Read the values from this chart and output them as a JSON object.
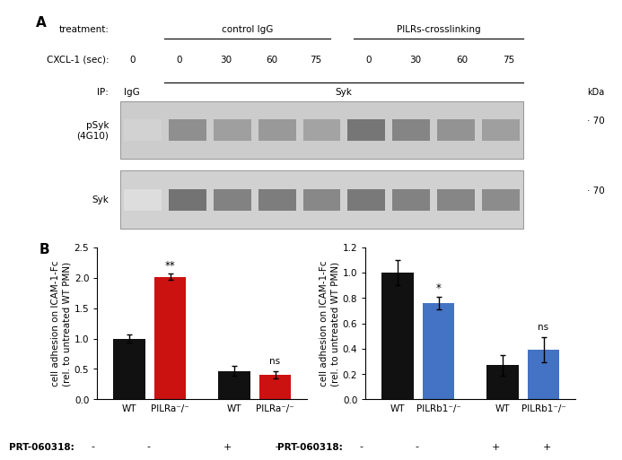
{
  "panel_A": {
    "treatment_label": "treatment:",
    "control_label": "control IgG",
    "pilrs_label": "PILRs-crosslinking",
    "cxcl1_label": "CXCL-1 (sec):",
    "cxcl1_values": [
      "0",
      "0",
      "30",
      "60",
      "75",
      "0",
      "30",
      "60",
      "75"
    ],
    "ip_label": "IP:",
    "ip_igg": "IgG",
    "ip_syk": "Syk",
    "kda_label": "kDa",
    "kda_value": "70",
    "psyk_label": "pSyk\n(4G10)",
    "syk_label": "Syk",
    "blot1_bg": "#c8c8c8",
    "blot2_bg": "#d0d0d0",
    "band_color_dark": "#555555",
    "band_color_mid": "#777777",
    "band_color_light": "#aaaaaa",
    "band_color_veryfaint": "#bbbbbb"
  },
  "panel_B_left": {
    "values": [
      1.0,
      2.01,
      0.47,
      0.4
    ],
    "errors": [
      0.07,
      0.05,
      0.08,
      0.06
    ],
    "colors": [
      "#111111",
      "#cc1111",
      "#111111",
      "#cc1111"
    ],
    "ylabel_line1": "cell adhesion on ICAM-1-Fc",
    "ylabel_line2": "(rel. to untreated WT PMN)",
    "ylim": [
      0,
      2.5
    ],
    "yticks": [
      0,
      0.5,
      1.0,
      1.5,
      2.0,
      2.5
    ],
    "significance": [
      "",
      "**",
      "",
      "ns"
    ],
    "prt_label": "PRT-060318:",
    "prt_values": [
      "-",
      "-",
      "+",
      "+"
    ],
    "group_labels": [
      "WT",
      "PILRa⁻/⁻",
      "WT",
      "PILRa⁻/⁻"
    ]
  },
  "panel_B_right": {
    "values": [
      1.0,
      0.76,
      0.27,
      0.39
    ],
    "errors": [
      0.1,
      0.05,
      0.08,
      0.1
    ],
    "colors": [
      "#111111",
      "#4472c4",
      "#111111",
      "#4472c4"
    ],
    "ylabel_line1": "cell adhesion on ICAM-1-Fc",
    "ylabel_line2": "(rel. to untreated WT PMN)",
    "ylim": [
      0,
      1.2
    ],
    "yticks": [
      0,
      0.2,
      0.4,
      0.6,
      0.8,
      1.0,
      1.2
    ],
    "significance": [
      "",
      "*",
      "",
      "ns"
    ],
    "prt_label": "PRT-060318:",
    "prt_values": [
      "-",
      "-",
      "+",
      "+"
    ],
    "group_labels": [
      "WT",
      "PILRb1⁻/⁻",
      "WT",
      "PILRb1⁻/⁻"
    ]
  },
  "bg_color": "#ffffff",
  "bar_width": 0.55
}
